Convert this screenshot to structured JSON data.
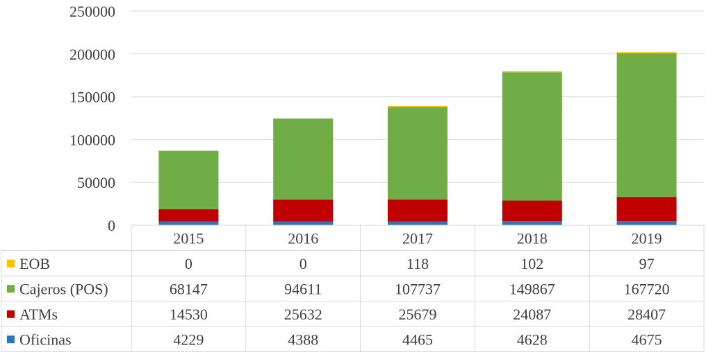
{
  "chart_data": {
    "type": "bar",
    "stacked": true,
    "categories": [
      "2015",
      "2016",
      "2017",
      "2018",
      "2019"
    ],
    "series": [
      {
        "name": "Oficinas",
        "color": "#2E75B6",
        "values": [
          4229,
          4388,
          4465,
          4628,
          4675
        ]
      },
      {
        "name": "ATMs",
        "color": "#C00000",
        "values": [
          14530,
          25632,
          25679,
          24087,
          28407
        ]
      },
      {
        "name": "Cajeros (POS)",
        "color": "#70AD47",
        "values": [
          68147,
          94611,
          107737,
          149867,
          167720
        ]
      },
      {
        "name": "EOB",
        "color": "#FFC000",
        "values": [
          0,
          0,
          118,
          102,
          97
        ]
      }
    ],
    "table_rows": [
      {
        "name": "EOB",
        "color": "#FFC000",
        "values": [
          "0",
          "0",
          "118",
          "102",
          "97"
        ]
      },
      {
        "name": "Cajeros (POS)",
        "color": "#70AD47",
        "values": [
          "68147",
          "94611",
          "107737",
          "149867",
          "167720"
        ]
      },
      {
        "name": "ATMs",
        "color": "#C00000",
        "values": [
          "14530",
          "25632",
          "25679",
          "24087",
          "28407"
        ]
      },
      {
        "name": "Oficinas",
        "color": "#2E75B6",
        "values": [
          "4229",
          "4388",
          "4465",
          "4628",
          "4675"
        ]
      }
    ],
    "y_ticks": [
      "0",
      "50000",
      "100000",
      "150000",
      "200000",
      "250000"
    ],
    "ylim": [
      0,
      250000
    ],
    "grid": true,
    "legend": "data-table-left"
  }
}
